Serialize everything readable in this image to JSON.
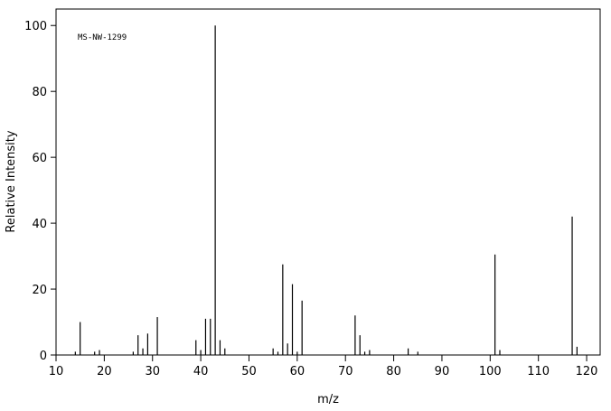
{
  "chart_data": {
    "type": "bar",
    "annotation": "MS-NW-1299",
    "x_label": "m/z",
    "y_label": "Relative Intensity",
    "x": [
      14,
      15,
      18,
      19,
      26,
      27,
      28,
      29,
      31,
      39,
      40,
      41,
      42,
      43,
      44,
      45,
      55,
      56,
      57,
      58,
      59,
      60,
      61,
      72,
      73,
      74,
      75,
      83,
      85,
      101,
      102,
      117,
      118
    ],
    "values": [
      1,
      10,
      1,
      1.5,
      1,
      6,
      2,
      6.5,
      11.5,
      4.5,
      1.5,
      11,
      11,
      100,
      4.5,
      2,
      2,
      1,
      27.5,
      3.5,
      21.5,
      1,
      16.5,
      12,
      6,
      1,
      1.5,
      2,
      1,
      30.5,
      1.5,
      42,
      2.5
    ],
    "color": "#000000",
    "xlim": [
      10,
      122.8
    ],
    "xticks": [
      10,
      20,
      30,
      40,
      50,
      60,
      70,
      80,
      90,
      100,
      110,
      120
    ],
    "ylim": [
      0,
      105
    ],
    "yticks": [
      0,
      20,
      40,
      60,
      80,
      100
    ]
  }
}
